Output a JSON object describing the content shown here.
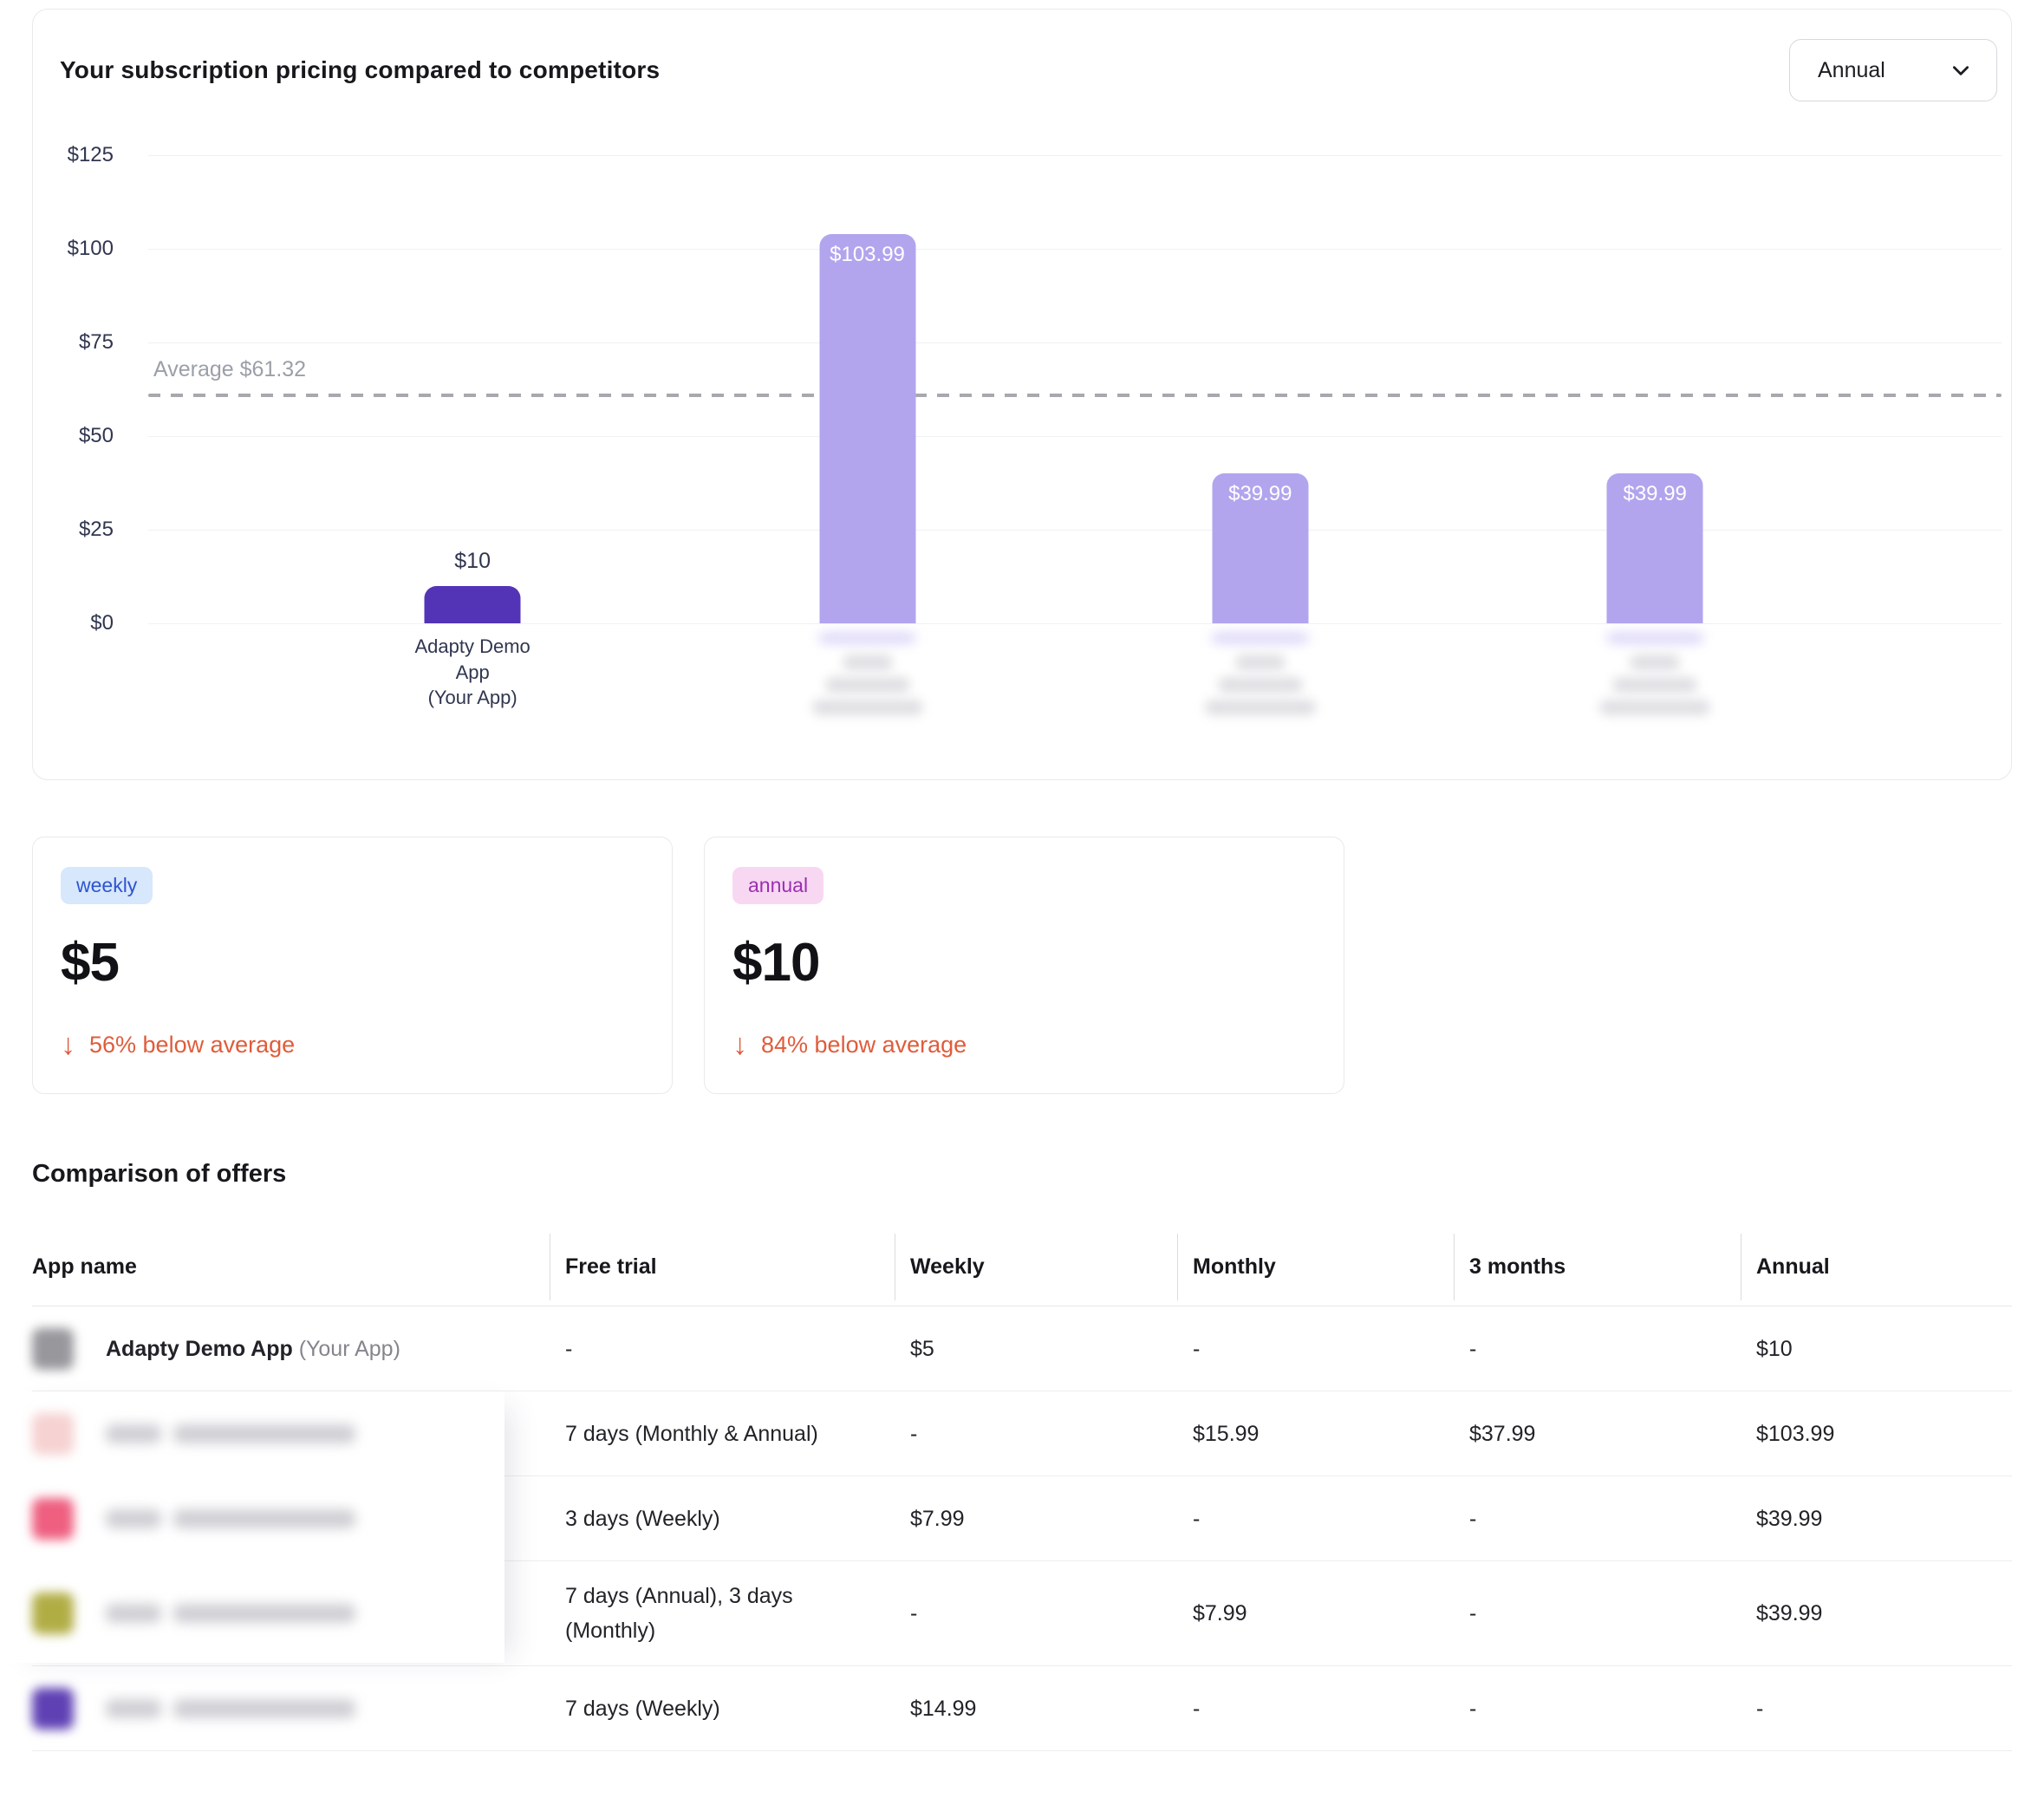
{
  "chart_card": {
    "title": "Your subscription pricing compared to competitors",
    "period_dropdown": {
      "value": "Annual"
    }
  },
  "chart_data": {
    "type": "bar",
    "title": "Your subscription pricing compared to competitors",
    "period": "Annual",
    "categories": [
      "Adapty Demo App (Your App)",
      "[blurred competitor]",
      "[blurred competitor]",
      "[blurred competitor]"
    ],
    "category_lines": [
      [
        "Adapty Demo",
        "App",
        "(Your App)"
      ],
      null,
      null,
      null
    ],
    "redacted": [
      false,
      true,
      true,
      true
    ],
    "values": [
      10,
      103.99,
      39.99,
      39.99
    ],
    "bar_labels": [
      "$10",
      "$103.99",
      "$39.99",
      "$39.99"
    ],
    "bar_colors": [
      "#5434b6",
      "#b2a5ee",
      "#b2a5ee",
      "#b2a5ee"
    ],
    "average_line": {
      "value": 61.32,
      "label": "Average $61.32"
    },
    "y_ticks": [
      "$0",
      "$25",
      "$50",
      "$75",
      "$100",
      "$125"
    ],
    "y_tick_values": [
      0,
      25,
      50,
      75,
      100,
      125
    ],
    "ylim": [
      0,
      125
    ],
    "grid": true,
    "legend": "none"
  },
  "stat_cards": [
    {
      "badge": "weekly",
      "value": "$5",
      "delta": "56% below average",
      "direction": "down"
    },
    {
      "badge": "annual",
      "value": "$10",
      "delta": "84% below average",
      "direction": "down"
    }
  ],
  "comparison": {
    "heading": "Comparison of offers",
    "columns": [
      "App name",
      "Free trial",
      "Weekly",
      "Monthly",
      "3 months",
      "Annual"
    ],
    "rows": [
      {
        "app_name": "Adapty Demo App",
        "app_name_suffix": "(Your App)",
        "redacted": false,
        "icon_color": "#97979c",
        "free_trial": "-",
        "weekly": "$5",
        "monthly": "-",
        "three_months": "-",
        "annual": "$10"
      },
      {
        "app_name": "",
        "redacted": true,
        "icon_color": "#f6d2d2",
        "free_trial": "7 days (Monthly & Annual)",
        "weekly": "-",
        "monthly": "$15.99",
        "three_months": "$37.99",
        "annual": "$103.99"
      },
      {
        "app_name": "",
        "redacted": true,
        "icon_color": "#ee5f80",
        "free_trial": "3 days (Weekly)",
        "weekly": "$7.99",
        "monthly": "-",
        "three_months": "-",
        "annual": "$39.99"
      },
      {
        "app_name": "",
        "redacted": true,
        "icon_color": "#b1ad45",
        "free_trial": "7 days (Annual), 3 days (Monthly)",
        "weekly": "-",
        "monthly": "$7.99",
        "three_months": "-",
        "annual": "$39.99"
      },
      {
        "app_name": "",
        "redacted": true,
        "icon_color": "#5f41b4",
        "free_trial": "7 days (Weekly)",
        "weekly": "$14.99",
        "monthly": "-",
        "three_months": "-",
        "annual": "-"
      }
    ]
  },
  "colors": {
    "your_app_bar": "#5434b6",
    "competitor_bar": "#b2a5ee",
    "below_average_text": "#e05c3a",
    "average_line": "#a8a8ae",
    "weekly_badge_bg": "#d7e7fc",
    "weekly_badge_text": "#2e55cf",
    "annual_badge_bg": "#f8d7f3",
    "annual_badge_text": "#9b2fb0"
  }
}
